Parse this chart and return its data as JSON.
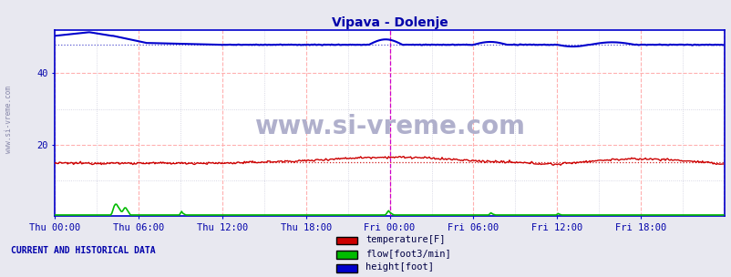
{
  "title": "Vipava - Dolenje",
  "title_color": "#0000aa",
  "bg_color": "#e8e8f0",
  "plot_bg_color": "#ffffff",
  "xlabel_color": "#0000aa",
  "ylabel_color": "#0000aa",
  "watermark": "www.si-vreme.com",
  "watermark_color": "#b0b0cc",
  "left_label": "www.si-vreme.com",
  "left_label_color": "#8888aa",
  "bottom_text": "CURRENT AND HISTORICAL DATA",
  "bottom_text_color": "#0000aa",
  "legend_labels": [
    "temperature[F]",
    "flow[foot3/min]",
    "height[foot]"
  ],
  "legend_colors": [
    "#cc0000",
    "#00bb00",
    "#0000cc"
  ],
  "xtick_labels": [
    "Thu 00:00",
    "Thu 06:00",
    "Thu 12:00",
    "Thu 18:00",
    "Fri 00:00",
    "Fri 06:00",
    "Fri 12:00",
    "Fri 18:00"
  ],
  "xtick_positions": [
    0,
    72,
    144,
    216,
    288,
    360,
    432,
    504
  ],
  "ytick_labels": [
    "20",
    "40"
  ],
  "ytick_positions": [
    20,
    40
  ],
  "ylim": [
    0,
    52
  ],
  "xlim": [
    0,
    576
  ],
  "grid_color_major_v": "#ffb0b0",
  "grid_color_major_h": "#ffb0b0",
  "grid_color_minor": "#ccccdd",
  "temp_color": "#cc0000",
  "flow_color": "#00bb00",
  "height_color": "#0000cc",
  "height_ref_color": "#4444cc",
  "temp_ref_color": "#cc0000",
  "magenta_line_x": 288,
  "magenta_line_color": "#cc00cc",
  "end_line_x": 575,
  "num_points": 576,
  "spine_color": "#0000cc"
}
